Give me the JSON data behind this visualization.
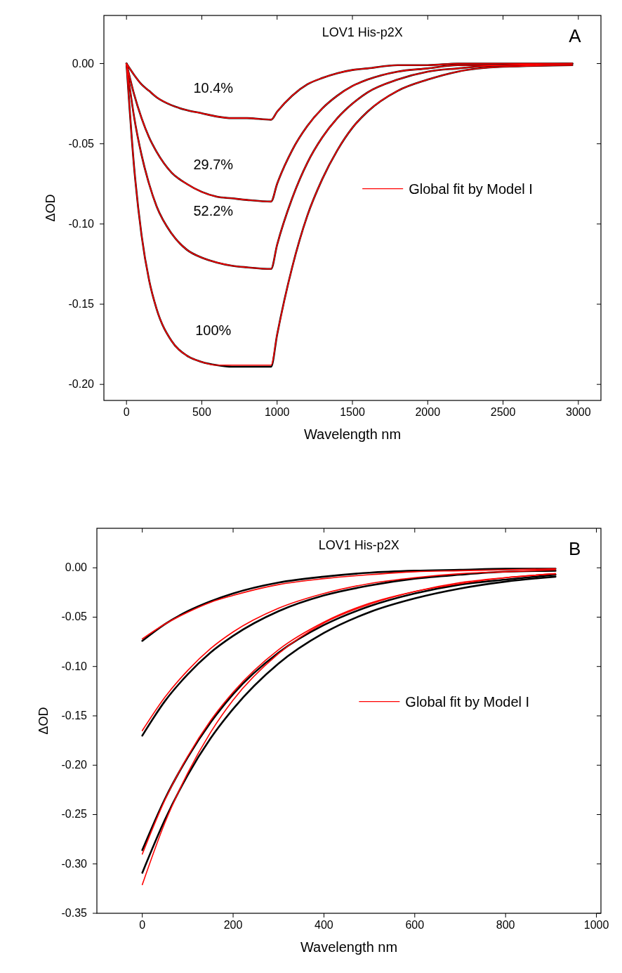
{
  "chart_data": [
    {
      "type": "line",
      "title": "LOV1 His-p2X",
      "xlabel": "Wavelength nm",
      "ylabel": "ΔOD",
      "annotations": [
        "A",
        "10.4%",
        "29.7%",
        "52.2%",
        "100%"
      ],
      "x": [
        0,
        50,
        100,
        150,
        200,
        300,
        400,
        500,
        600,
        700,
        800,
        960,
        1000,
        1100,
        1200,
        1300,
        1400,
        1500,
        1600,
        1800,
        2000,
        2200,
        2500,
        2960
      ],
      "series": [
        {
          "color": "#000000",
          "values": [
            0,
            -0.007,
            -0.013,
            -0.017,
            -0.021,
            -0.026,
            -0.029,
            -0.031,
            -0.033,
            -0.034,
            -0.034,
            -0.035,
            -0.03,
            -0.02,
            -0.013,
            -0.009,
            -0.006,
            -0.004,
            -0.003,
            -0.001,
            -0.001,
            0,
            0,
            0
          ]
        },
        {
          "color": "#000000",
          "values": [
            0,
            -0.019,
            -0.034,
            -0.046,
            -0.055,
            -0.068,
            -0.075,
            -0.08,
            -0.083,
            -0.084,
            -0.085,
            -0.086,
            -0.075,
            -0.054,
            -0.039,
            -0.028,
            -0.02,
            -0.014,
            -0.01,
            -0.005,
            -0.003,
            -0.001,
            -0.001,
            0
          ]
        },
        {
          "color": "#000000",
          "values": [
            0,
            -0.033,
            -0.057,
            -0.075,
            -0.089,
            -0.106,
            -0.116,
            -0.121,
            -0.124,
            -0.126,
            -0.127,
            -0.128,
            -0.113,
            -0.084,
            -0.062,
            -0.046,
            -0.034,
            -0.025,
            -0.018,
            -0.01,
            -0.005,
            -0.003,
            -0.001,
            0
          ]
        },
        {
          "color": "#000000",
          "values": [
            0,
            -0.064,
            -0.107,
            -0.135,
            -0.153,
            -0.173,
            -0.182,
            -0.186,
            -0.188,
            -0.189,
            -0.189,
            -0.189,
            -0.169,
            -0.127,
            -0.095,
            -0.072,
            -0.054,
            -0.04,
            -0.03,
            -0.017,
            -0.01,
            -0.005,
            -0.002,
            -0.001
          ]
        },
        {
          "name": "Global fit by Model I",
          "color": "#ff0000",
          "values": [
            0,
            -0.007,
            -0.013,
            -0.017,
            -0.021,
            -0.026,
            -0.029,
            -0.031,
            -0.033,
            -0.034,
            -0.034,
            -0.035,
            -0.03,
            -0.02,
            -0.013,
            -0.009,
            -0.006,
            -0.004,
            -0.003,
            -0.001,
            -0.001,
            0,
            0,
            0
          ]
        },
        {
          "color": "#ff0000",
          "values": [
            0,
            -0.019,
            -0.034,
            -0.046,
            -0.055,
            -0.068,
            -0.075,
            -0.08,
            -0.083,
            -0.084,
            -0.085,
            -0.086,
            -0.075,
            -0.054,
            -0.039,
            -0.028,
            -0.02,
            -0.014,
            -0.01,
            -0.005,
            -0.003,
            -0.001,
            -0.001,
            0
          ]
        },
        {
          "color": "#ff0000",
          "values": [
            0,
            -0.033,
            -0.057,
            -0.075,
            -0.089,
            -0.106,
            -0.116,
            -0.121,
            -0.124,
            -0.126,
            -0.127,
            -0.128,
            -0.113,
            -0.084,
            -0.062,
            -0.046,
            -0.034,
            -0.025,
            -0.018,
            -0.01,
            -0.005,
            -0.003,
            -0.001,
            0
          ]
        },
        {
          "color": "#ff0000",
          "values": [
            0,
            -0.064,
            -0.107,
            -0.135,
            -0.153,
            -0.173,
            -0.182,
            -0.186,
            -0.188,
            -0.188,
            -0.188,
            -0.188,
            -0.169,
            -0.127,
            -0.095,
            -0.072,
            -0.054,
            -0.04,
            -0.03,
            -0.017,
            -0.01,
            -0.005,
            -0.002,
            -0.001
          ]
        }
      ],
      "xlim": [
        -150,
        3150
      ],
      "xticks": [
        0,
        500,
        1000,
        1500,
        2000,
        2500,
        3000
      ],
      "ylim": [
        -0.21,
        0.03
      ],
      "yticks": [
        {
          "value": 0,
          "label": "0.00"
        },
        {
          "value": -0.05,
          "label": "-0.05"
        },
        {
          "value": -0.1,
          "label": "-0.10"
        },
        {
          "value": -0.15,
          "label": "-0.15"
        },
        {
          "value": -0.2,
          "label": "-0.20"
        }
      ],
      "legend": "right",
      "marker": "none",
      "line_style": "solid",
      "grid": false
    },
    {
      "type": "line",
      "title": "LOV1 His-p2X",
      "xlabel": "Wavelength nm",
      "ylabel": "ΔOD",
      "annotations": [
        "B"
      ],
      "x": [
        0,
        50,
        100,
        150,
        200,
        300,
        400,
        500,
        600,
        700,
        800,
        910
      ],
      "series": [
        {
          "color": "#000000",
          "values": [
            -0.074,
            -0.057,
            -0.044,
            -0.034,
            -0.026,
            -0.015,
            -0.009,
            -0.005,
            -0.003,
            -0.002,
            -0.001,
            -0.001
          ]
        },
        {
          "color": "#000000",
          "values": [
            -0.17,
            -0.135,
            -0.108,
            -0.086,
            -0.069,
            -0.044,
            -0.028,
            -0.018,
            -0.011,
            -0.007,
            -0.004,
            -0.003
          ]
        },
        {
          "color": "#000000",
          "values": [
            -0.286,
            -0.234,
            -0.192,
            -0.157,
            -0.128,
            -0.086,
            -0.058,
            -0.039,
            -0.026,
            -0.017,
            -0.012,
            -0.007
          ]
        },
        {
          "color": "#000000",
          "values": [
            -0.309,
            -0.255,
            -0.21,
            -0.173,
            -0.143,
            -0.097,
            -0.066,
            -0.045,
            -0.031,
            -0.021,
            -0.014,
            -0.009
          ]
        },
        {
          "name": "Global fit by Model I",
          "color": "#ff0000",
          "values": [
            -0.072,
            -0.057,
            -0.045,
            -0.035,
            -0.028,
            -0.017,
            -0.011,
            -0.007,
            -0.004,
            -0.003,
            -0.002,
            -0.001
          ]
        },
        {
          "color": "#ff0000",
          "values": [
            -0.165,
            -0.131,
            -0.104,
            -0.082,
            -0.065,
            -0.041,
            -0.026,
            -0.016,
            -0.01,
            -0.006,
            -0.004,
            -0.002
          ]
        },
        {
          "color": "#ff0000",
          "values": [
            -0.29,
            -0.235,
            -0.191,
            -0.155,
            -0.126,
            -0.083,
            -0.055,
            -0.036,
            -0.024,
            -0.016,
            -0.01,
            -0.006
          ]
        },
        {
          "color": "#ff0000",
          "values": [
            -0.321,
            -0.258,
            -0.208,
            -0.167,
            -0.134,
            -0.087,
            -0.056,
            -0.037,
            -0.024,
            -0.015,
            -0.01,
            -0.006
          ]
        }
      ],
      "xlim": [
        -100,
        1010
      ],
      "xticks": [
        0,
        200,
        400,
        600,
        800,
        1000
      ],
      "ylim": [
        -0.35,
        0.04
      ],
      "yticks": [
        {
          "value": 0,
          "label": "0.00"
        },
        {
          "value": -0.05,
          "label": "-0.05"
        },
        {
          "value": -0.1,
          "label": "-0.10"
        },
        {
          "value": -0.15,
          "label": "-0.15"
        },
        {
          "value": -0.2,
          "label": "-0.20"
        },
        {
          "value": -0.25,
          "label": "-0.25"
        },
        {
          "value": -0.3,
          "label": "-0.30"
        },
        {
          "value": -0.35,
          "label": "-0.35"
        }
      ],
      "legend": "right",
      "marker": "none",
      "line_style": "solid",
      "grid": false
    }
  ]
}
